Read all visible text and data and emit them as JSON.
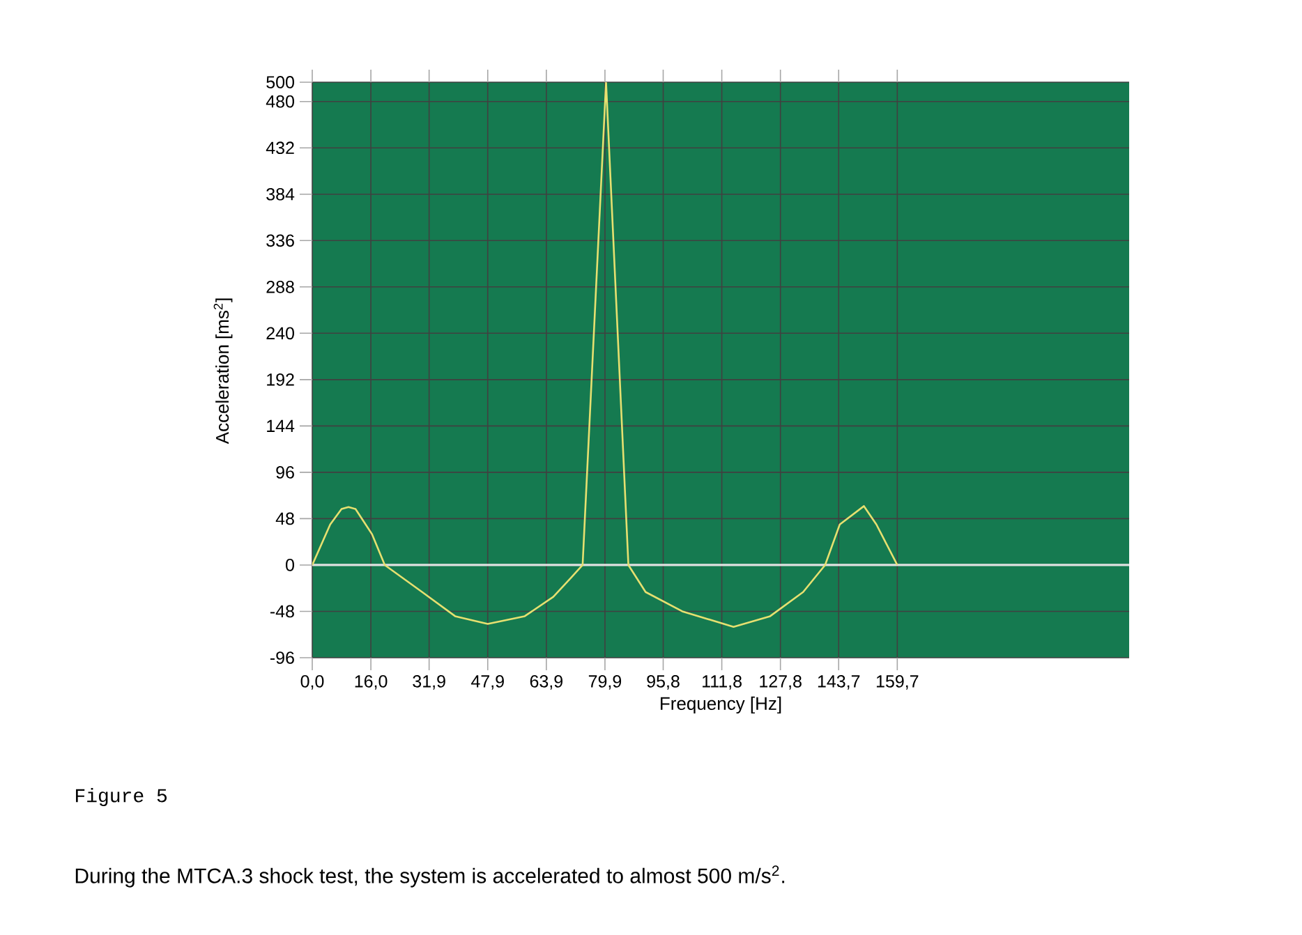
{
  "chart_data": {
    "type": "line",
    "xlabel": "Frequency [Hz]",
    "ylabel": "Acceleration [ms$^{2}$]",
    "annotations": [
      "Figure 5",
      "During the MTCA.3 shock test, the system is accelerated to almost 500 m/s$^{2}$."
    ],
    "x": [
      0,
      4.9,
      8,
      9.9,
      11.8,
      16.3,
      19.8,
      30,
      39,
      47.9,
      58,
      65.8,
      70.7,
      73.8,
      80.2,
      86.3,
      91,
      101,
      115,
      125,
      134,
      140,
      144,
      150.6,
      154,
      159.7
    ],
    "values": [
      0,
      42,
      58,
      60,
      58,
      32,
      0,
      -28,
      -53,
      -61,
      -53,
      -33,
      -13,
      0,
      500,
      0,
      -28,
      -48,
      -64,
      -53,
      -28,
      0,
      42,
      61,
      42,
      0
    ],
    "color": "#e6e070",
    "xlim": [
      0,
      223
    ],
    "xticks": [
      {
        "value": 0,
        "label": "0,0"
      },
      {
        "value": 16,
        "label": "16,0"
      },
      {
        "value": 31.9,
        "label": "31,9"
      },
      {
        "value": 47.9,
        "label": "47,9"
      },
      {
        "value": 63.9,
        "label": "63,9"
      },
      {
        "value": 79.9,
        "label": "79,9"
      },
      {
        "value": 95.8,
        "label": "95,8"
      },
      {
        "value": 111.8,
        "label": "111,8"
      },
      {
        "value": 127.8,
        "label": "127,8"
      },
      {
        "value": 143.7,
        "label": "143,7"
      },
      {
        "value": 159.7,
        "label": "159,7"
      }
    ],
    "ylim": [
      -96,
      500
    ],
    "yticks": [
      -96,
      -48,
      0,
      48,
      96,
      144,
      192,
      240,
      288,
      336,
      384,
      432,
      480,
      500
    ],
    "grid": true,
    "ref_lines": [
      {
        "axis": "y",
        "value": 0,
        "color": "#e0e0e0"
      }
    ]
  }
}
